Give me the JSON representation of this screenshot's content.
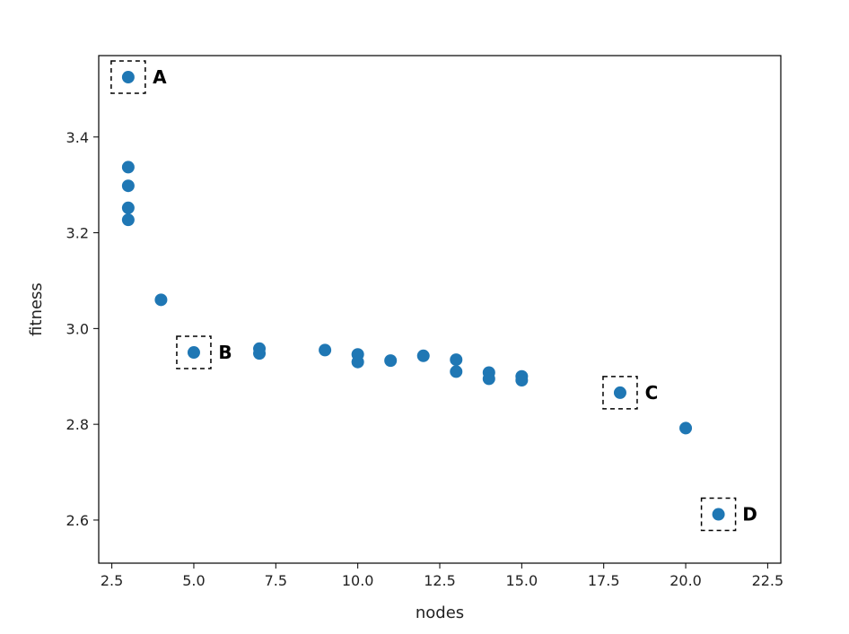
{
  "chart_data": {
    "type": "scatter",
    "title": "",
    "xlabel": "nodes",
    "ylabel": "fitness",
    "xlim": [
      2.1,
      22.9
    ],
    "ylim": [
      2.51,
      3.57
    ],
    "xticks": [
      2.5,
      5.0,
      7.5,
      10.0,
      12.5,
      15.0,
      17.5,
      20.0,
      22.5
    ],
    "xtick_labels": [
      "2.5",
      "5.0",
      "7.5",
      "10.0",
      "12.5",
      "15.0",
      "17.5",
      "20.0",
      "22.5"
    ],
    "yticks": [
      2.6,
      2.8,
      3.0,
      3.2,
      3.4
    ],
    "ytick_labels": [
      "2.6",
      "2.8",
      "3.0",
      "3.2",
      "3.4"
    ],
    "grid": false,
    "marker_color": "#1f77b4",
    "points": [
      {
        "x": 3,
        "y": 3.525
      },
      {
        "x": 3,
        "y": 3.337
      },
      {
        "x": 3,
        "y": 3.298
      },
      {
        "x": 3,
        "y": 3.252
      },
      {
        "x": 3,
        "y": 3.227
      },
      {
        "x": 4,
        "y": 3.06
      },
      {
        "x": 5,
        "y": 2.95
      },
      {
        "x": 7,
        "y": 2.958
      },
      {
        "x": 7,
        "y": 2.948
      },
      {
        "x": 9,
        "y": 2.955
      },
      {
        "x": 10,
        "y": 2.946
      },
      {
        "x": 10,
        "y": 2.93
      },
      {
        "x": 11,
        "y": 2.933
      },
      {
        "x": 12,
        "y": 2.943
      },
      {
        "x": 13,
        "y": 2.935
      },
      {
        "x": 13,
        "y": 2.91
      },
      {
        "x": 14,
        "y": 2.908
      },
      {
        "x": 14,
        "y": 2.895
      },
      {
        "x": 15,
        "y": 2.9
      },
      {
        "x": 15,
        "y": 2.892
      },
      {
        "x": 18,
        "y": 2.866
      },
      {
        "x": 20,
        "y": 2.792
      },
      {
        "x": 21,
        "y": 2.612
      }
    ],
    "annotations": [
      {
        "label": "A",
        "x": 3,
        "y": 3.525
      },
      {
        "label": "B",
        "x": 5,
        "y": 2.95
      },
      {
        "label": "C",
        "x": 18,
        "y": 2.866
      },
      {
        "label": "D",
        "x": 21,
        "y": 2.612
      }
    ]
  }
}
